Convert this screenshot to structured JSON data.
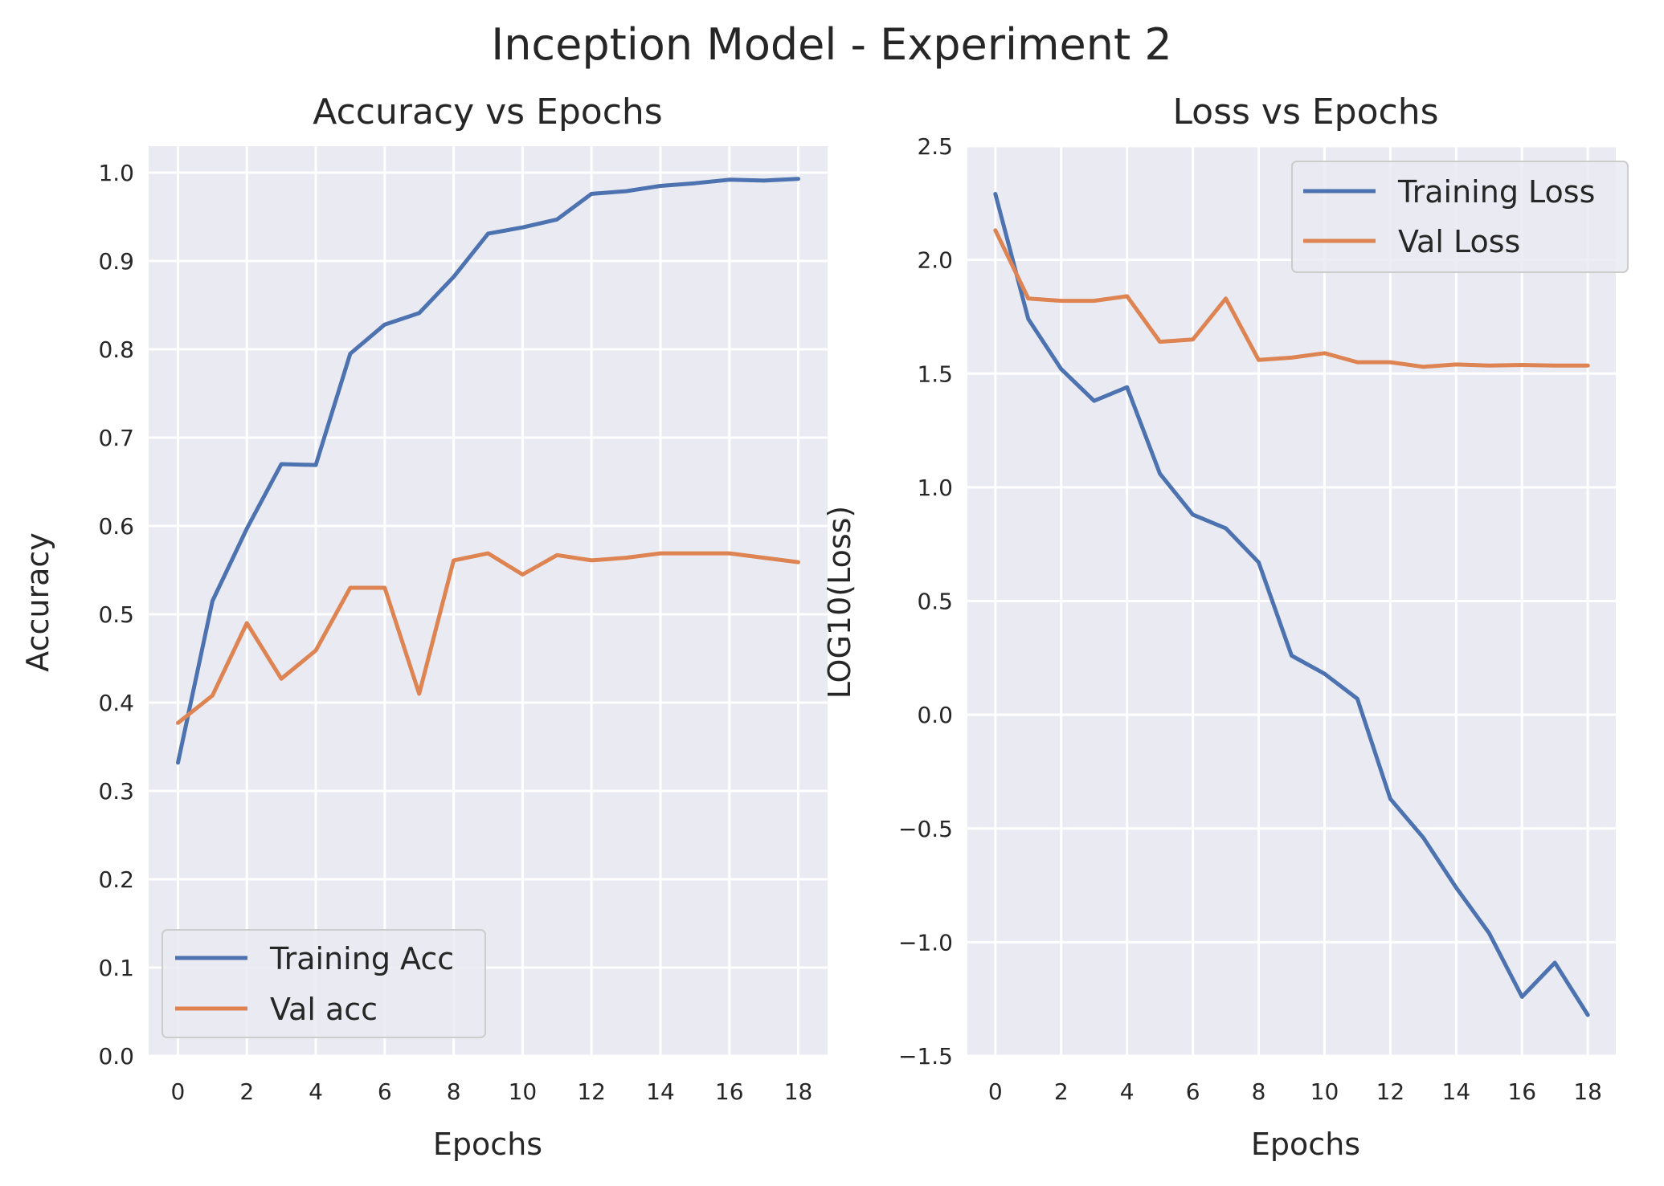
{
  "figure": {
    "title": "Inception Model - Experiment 2"
  },
  "chart_data": [
    {
      "type": "line",
      "title": "Accuracy vs Epochs",
      "xlabel": "Epochs",
      "ylabel": "Accuracy",
      "x": [
        0,
        1,
        2,
        3,
        4,
        5,
        6,
        7,
        8,
        9,
        10,
        11,
        12,
        13,
        14,
        15,
        16,
        17,
        18
      ],
      "xlim": [
        -0.85,
        18.85
      ],
      "ylim": [
        0.0,
        1.03
      ],
      "xticks": [
        0,
        2,
        4,
        6,
        8,
        10,
        12,
        14,
        16,
        18
      ],
      "yticks": [
        0.0,
        0.1,
        0.2,
        0.3,
        0.4,
        0.5,
        0.6,
        0.7,
        0.8,
        0.9,
        1.0
      ],
      "ytick_decimals": 1,
      "grid": true,
      "legend_position": "lower-left",
      "series": [
        {
          "name": "Training Acc",
          "color": "#4c72b0",
          "values": [
            0.332,
            0.515,
            0.597,
            0.67,
            0.669,
            0.795,
            0.828,
            0.841,
            0.882,
            0.931,
            0.938,
            0.947,
            0.976,
            0.979,
            0.985,
            0.988,
            0.992,
            0.991,
            0.993
          ]
        },
        {
          "name": "Val acc",
          "color": "#dd8452",
          "values": [
            0.377,
            0.408,
            0.49,
            0.427,
            0.459,
            0.53,
            0.53,
            0.41,
            0.561,
            0.569,
            0.545,
            0.567,
            0.561,
            0.564,
            0.569,
            0.569,
            0.569,
            0.564,
            0.559
          ]
        }
      ]
    },
    {
      "type": "line",
      "title": "Loss vs Epochs",
      "xlabel": "Epochs",
      "ylabel": "LOG10(Loss)",
      "x": [
        0,
        1,
        2,
        3,
        4,
        5,
        6,
        7,
        8,
        9,
        10,
        11,
        12,
        13,
        14,
        15,
        16,
        17,
        18
      ],
      "xlim": [
        -0.85,
        18.85
      ],
      "ylim": [
        -1.5,
        2.5
      ],
      "xticks": [
        0,
        2,
        4,
        6,
        8,
        10,
        12,
        14,
        16,
        18
      ],
      "yticks": [
        -1.5,
        -1.0,
        -0.5,
        0.0,
        0.5,
        1.0,
        1.5,
        2.0,
        2.5
      ],
      "ytick_decimals": 1,
      "grid": true,
      "legend_position": "upper-right",
      "series": [
        {
          "name": "Training Loss",
          "color": "#4c72b0",
          "values": [
            2.29,
            1.74,
            1.52,
            1.38,
            1.44,
            1.06,
            0.88,
            0.82,
            0.67,
            0.26,
            0.18,
            0.07,
            -0.37,
            -0.54,
            -0.76,
            -0.96,
            -1.24,
            -1.09,
            -1.32
          ]
        },
        {
          "name": "Val Loss",
          "color": "#dd8452",
          "values": [
            2.13,
            1.83,
            1.82,
            1.82,
            1.84,
            1.64,
            1.65,
            1.83,
            1.56,
            1.57,
            1.59,
            1.55,
            1.55,
            1.53,
            1.54,
            1.535,
            1.538,
            1.535,
            1.535
          ]
        }
      ]
    }
  ]
}
